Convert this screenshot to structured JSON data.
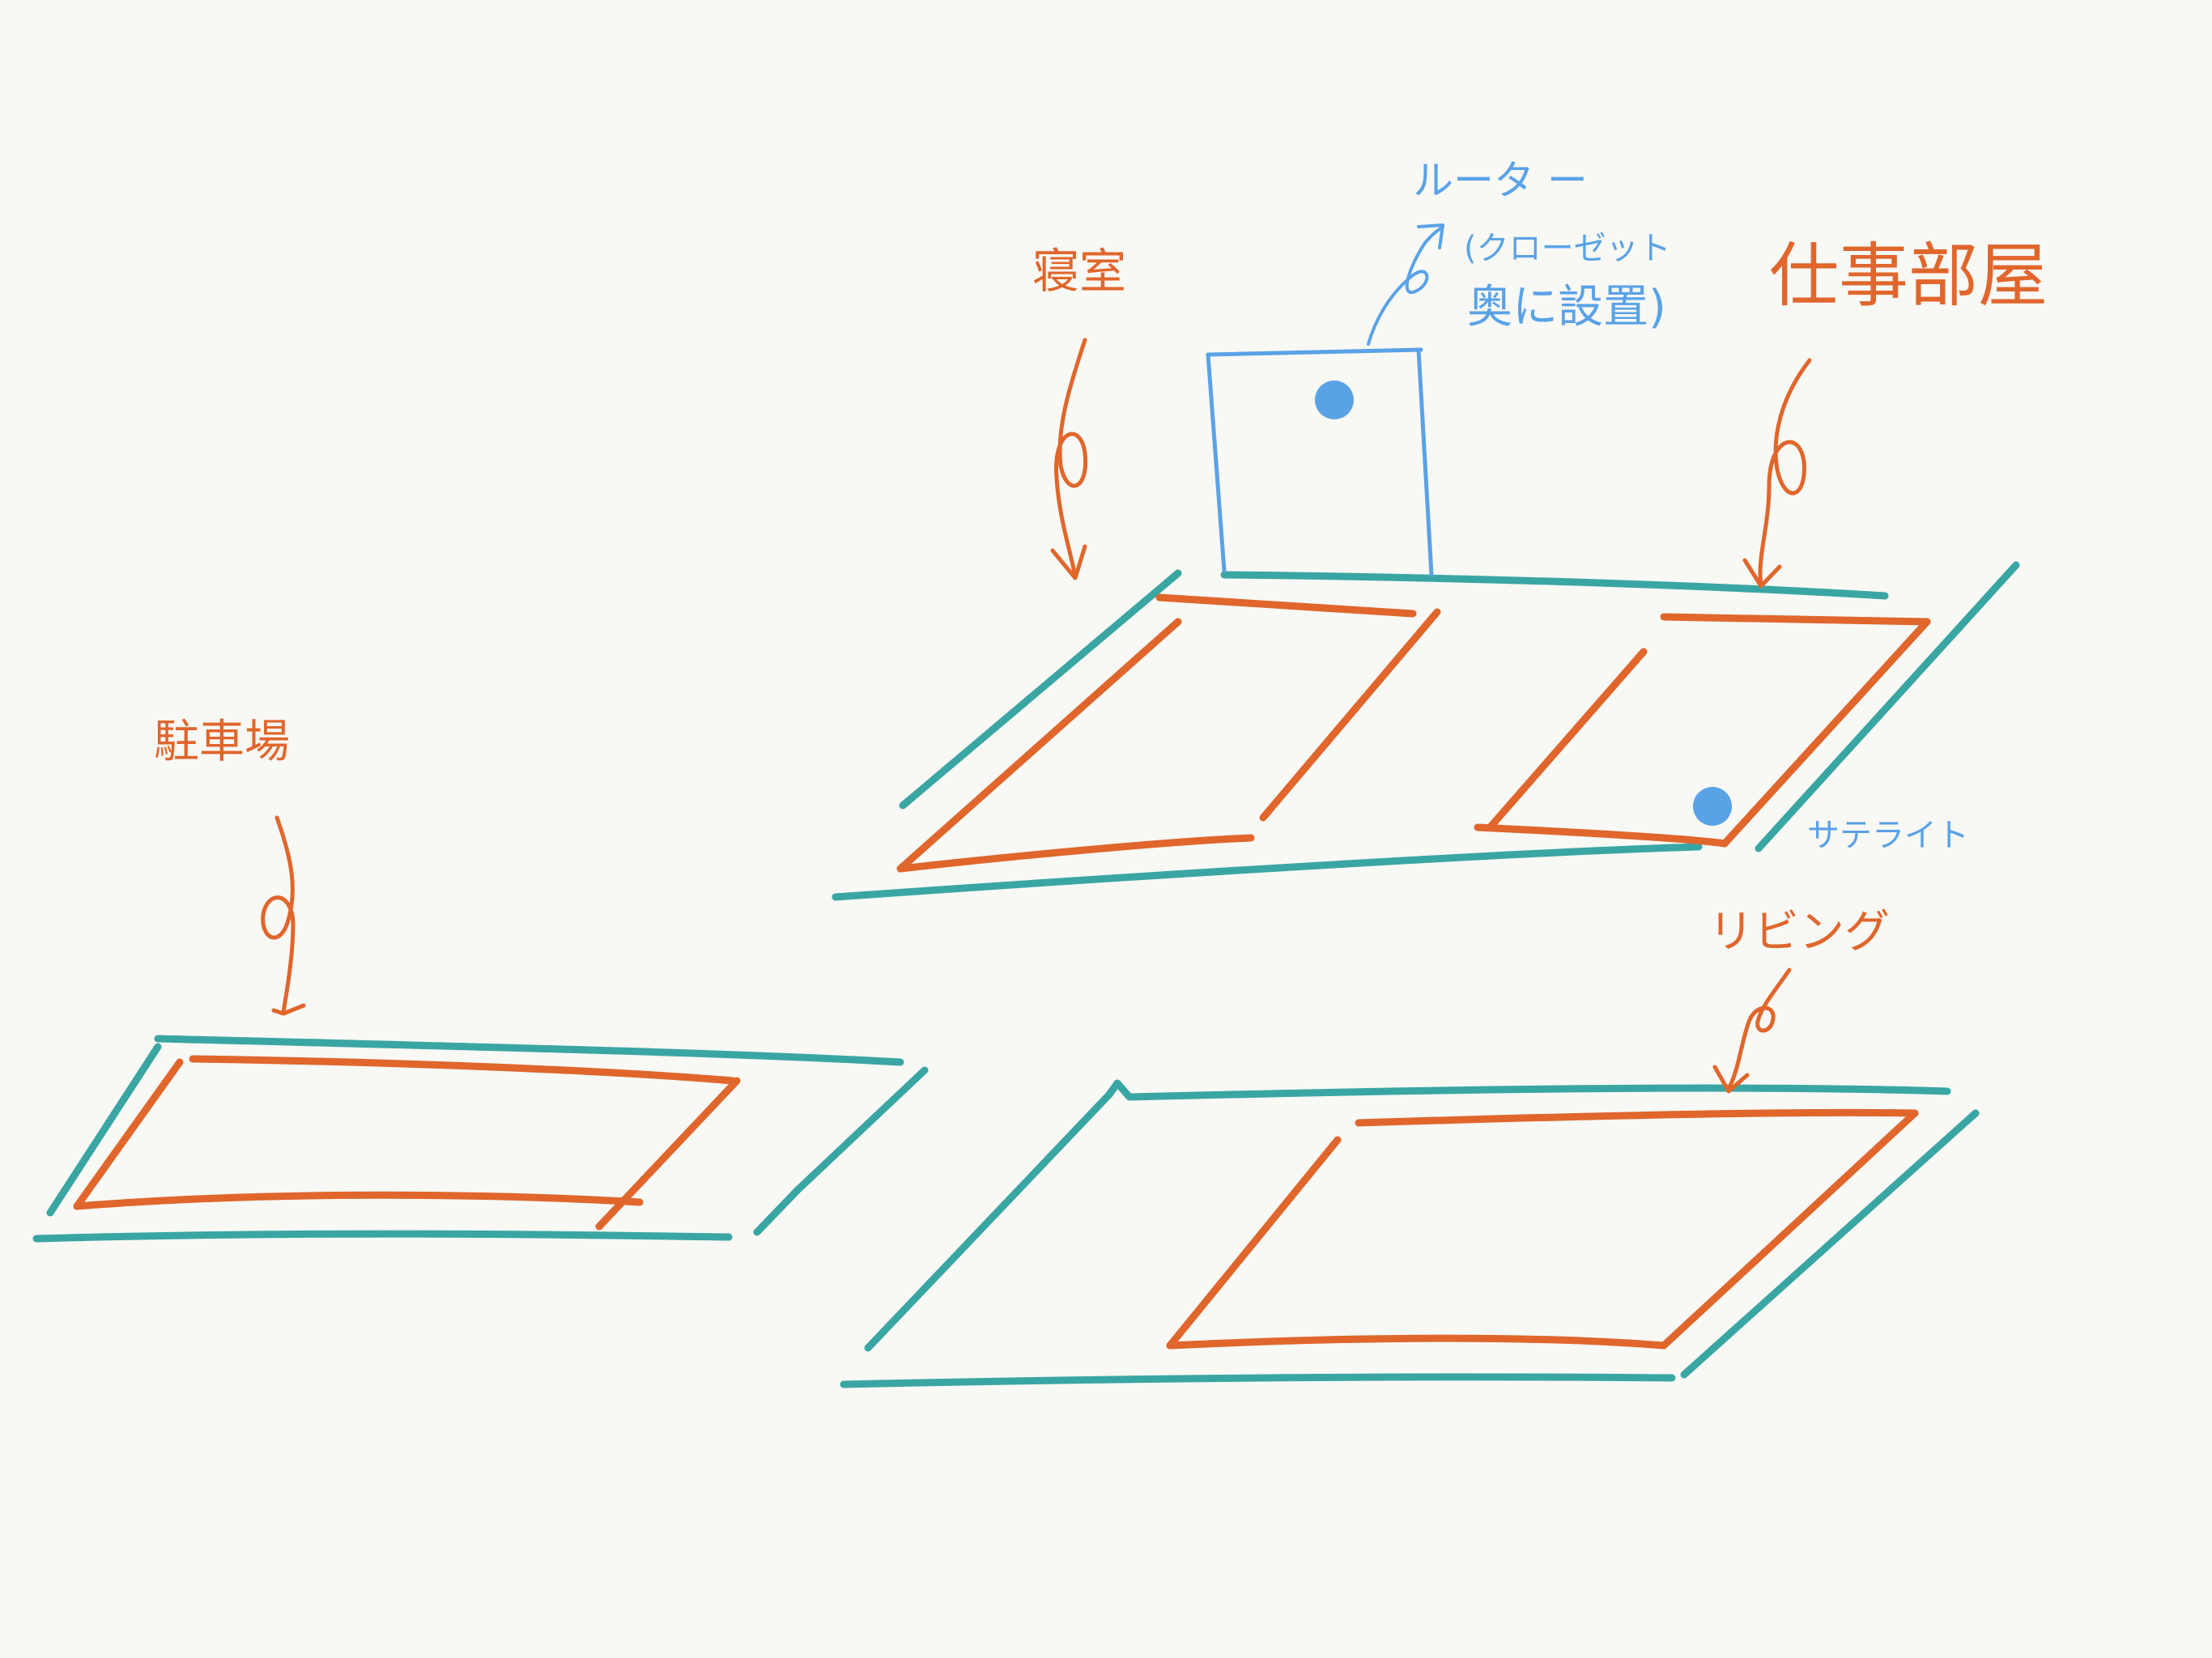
{
  "colors": {
    "background": "#f8f8f4",
    "floor": "#3aa6a4",
    "room": "#e0662c",
    "device": "#5aa2e6"
  },
  "labels": {
    "bedroom": "寝室",
    "router": "ルータ ー",
    "router_note_line1": "(クローゼット",
    "router_note_line2": "奥に設置)",
    "workroom": "仕事部屋",
    "satellite": "サテライト",
    "living": "リビング",
    "parking": "駐車場"
  },
  "devices": [
    {
      "name": "router",
      "icon": "filled-circle"
    },
    {
      "name": "satellite",
      "icon": "filled-circle"
    }
  ]
}
